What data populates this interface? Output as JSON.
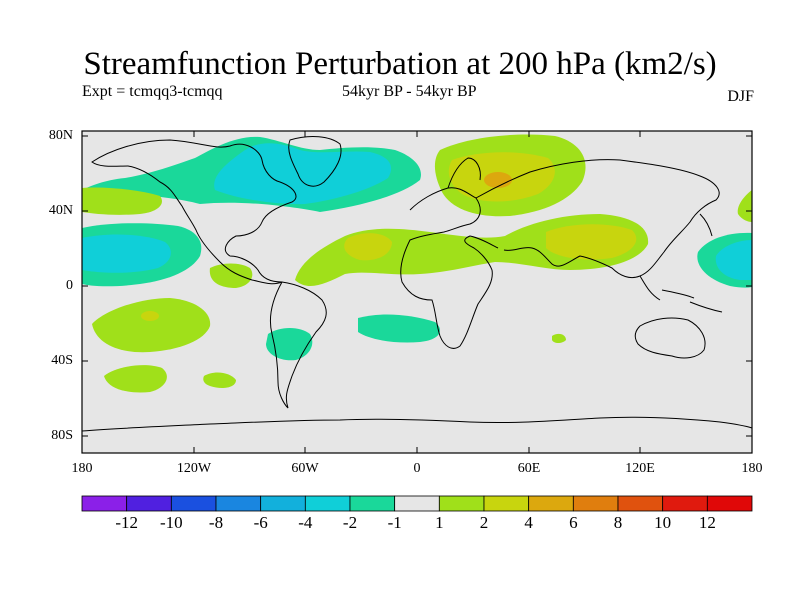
{
  "title": "Streamfunction Perturbation at 200 hPa (km2/s)",
  "experiment": "Expt = tcmqq3-tcmqq",
  "period": "54kyr BP - 54kyr BP",
  "season": "DJF",
  "lat_ticks": [
    "80N",
    "40N",
    "0",
    "40S",
    "80S"
  ],
  "lon_ticks": [
    "180",
    "120W",
    "60W",
    "0",
    "60E",
    "120E",
    "180"
  ],
  "colorbar": {
    "labels": [
      "-12",
      "-10",
      "-8",
      "-6",
      "-4",
      "-2",
      "-1",
      "1",
      "2",
      "4",
      "6",
      "8",
      "10",
      "12"
    ],
    "colors": [
      "#8b20e8",
      "#5020e0",
      "#1a50e0",
      "#1a86e0",
      "#12b0dc",
      "#10cfd8",
      "#1ad89a",
      "#e6e6e6",
      "#a0e01a",
      "#c8d50e",
      "#dca80e",
      "#e07e0e",
      "#e0520e",
      "#e01a0e",
      "#e00808"
    ]
  },
  "field_colors": {
    "land": "#000000",
    "background": "#e6e6e6"
  }
}
